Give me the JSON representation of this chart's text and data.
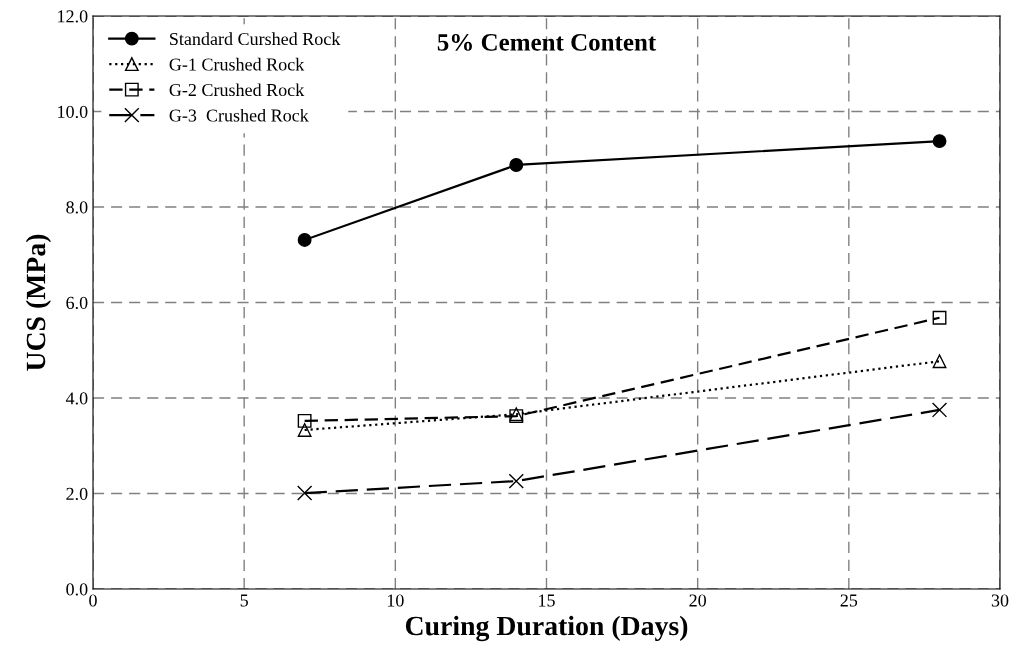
{
  "chart_data": {
    "type": "line",
    "title": "5% Cement Content",
    "xlabel": "Curing Duration (Days)",
    "ylabel": "UCS (MPa)",
    "x": [
      7,
      14,
      28
    ],
    "series": [
      {
        "name": "Standard Curshed Rock",
        "color": "#000000",
        "values": [
          7.31,
          8.88,
          9.38
        ],
        "marker": "circle",
        "line_style": "solid"
      },
      {
        "name": "G-1 Crushed Rock",
        "color": "#000000",
        "values": [
          3.33,
          3.66,
          4.77
        ],
        "marker": "triangle",
        "line_style": "dotted"
      },
      {
        "name": "G-2 Crushed Rock",
        "color": "#000000",
        "values": [
          3.52,
          3.62,
          5.68
        ],
        "marker": "square",
        "line_style": "dashed"
      },
      {
        "name": "G-3  Crushed Rock",
        "color": "#000000",
        "values": [
          2.01,
          2.26,
          3.75
        ],
        "marker": "cross",
        "line_style": "dashed"
      }
    ],
    "xlim": [
      0,
      30
    ],
    "xticks": [
      0,
      5,
      10,
      15,
      20,
      25,
      30
    ],
    "ylim": [
      0,
      12
    ],
    "yticks": [
      {
        "value": 0,
        "label": "0.0"
      },
      {
        "value": 2,
        "label": "2.0"
      },
      {
        "value": 4,
        "label": "4.0"
      },
      {
        "value": 6,
        "label": "6.0"
      },
      {
        "value": 8,
        "label": "8.0"
      },
      {
        "value": 10,
        "label": "10.0"
      },
      {
        "value": 12,
        "label": "12.0"
      }
    ],
    "grid": true,
    "legend": "top left"
  }
}
